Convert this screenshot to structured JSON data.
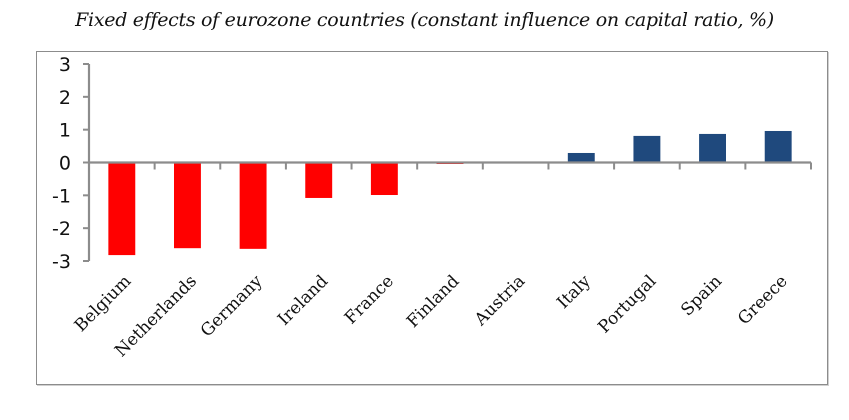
{
  "chart_data": {
    "type": "bar",
    "title": "Fixed effects of eurozone countries (constant influence on capital ratio, %)",
    "xlabel": "",
    "ylabel": "",
    "categories": [
      "Belgium",
      "Netherlands",
      "Germany",
      "Ireland",
      "France",
      "Finland",
      "Austria",
      "Italy",
      "Portugal",
      "Spain",
      "Greece"
    ],
    "values": [
      -2.82,
      -2.61,
      -2.63,
      -1.08,
      -0.99,
      -0.04,
      0.0,
      0.29,
      0.81,
      0.87,
      0.96
    ],
    "ylim": [
      -3,
      3
    ],
    "yticks": [
      3,
      2,
      1,
      0,
      -1,
      -2,
      -3
    ],
    "ytick_labels": [
      "3",
      "2",
      "1",
      "0",
      "-1",
      "-2",
      "-3"
    ],
    "grid": false,
    "legend": "none",
    "x_label_rotation_deg": -45,
    "colors": {
      "negative": "#FF0000",
      "positive": "#1F497D",
      "axis": "#8C8C8C",
      "frame": "#8C8C8C"
    }
  }
}
